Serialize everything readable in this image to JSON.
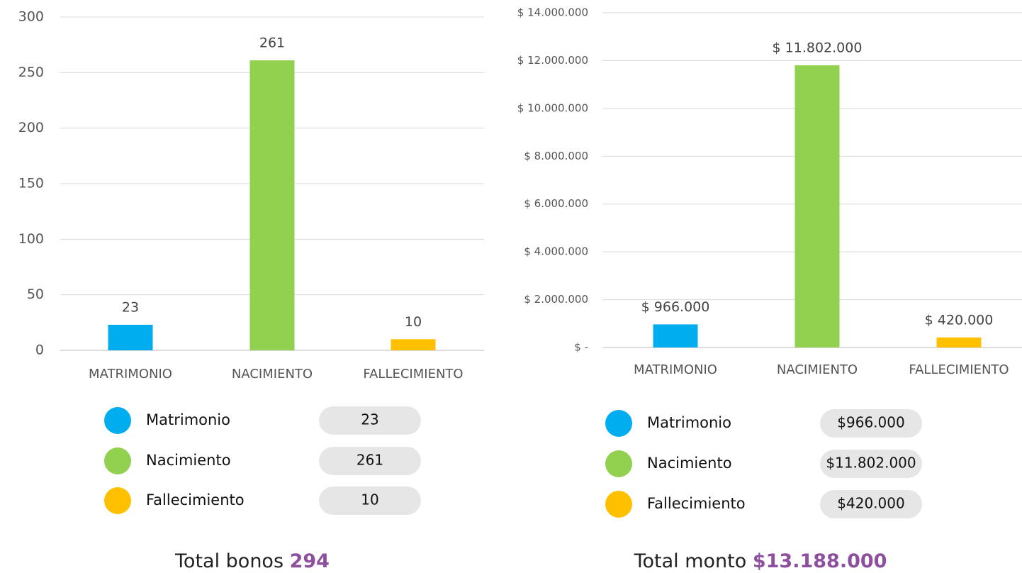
{
  "chart_data": [
    {
      "type": "bar",
      "categories": [
        "MATRIMONIO",
        "NACIMIENTO",
        "FALLECIMIENTO"
      ],
      "values": [
        23,
        261,
        10
      ],
      "colors": [
        "#00adef",
        "#92d050",
        "#ffc000"
      ],
      "ylim": [
        0,
        300
      ],
      "yticks": [
        0,
        50,
        100,
        150,
        200,
        250,
        300
      ],
      "grid": true
    },
    {
      "type": "bar",
      "categories": [
        "MATRIMONIO",
        "NACIMIENTO",
        "FALLECIMIENTO"
      ],
      "values": [
        966000,
        11802000,
        420000
      ],
      "value_labels": [
        "$ 966.000",
        "$ 11.802.000",
        "$ 420.000"
      ],
      "colors": [
        "#00adef",
        "#92d050",
        "#ffc000"
      ],
      "ylim": [
        0,
        14000000
      ],
      "yticks": [
        {
          "value": 0,
          "label": "$ -"
        },
        {
          "value": 2000000,
          "label": "$ 2.000.000"
        },
        {
          "value": 4000000,
          "label": "$ 4.000.000"
        },
        {
          "value": 6000000,
          "label": "$ 6.000.000"
        },
        {
          "value": 8000000,
          "label": "$ 8.000.000"
        },
        {
          "value": 10000000,
          "label": "$ 10.000.000"
        },
        {
          "value": 12000000,
          "label": "$ 12.000.000"
        },
        {
          "value": 14000000,
          "label": "$ 14.000.000"
        }
      ],
      "grid": true
    }
  ],
  "panels": [
    {
      "legend": [
        {
          "name": "Matrimonio",
          "value": "23"
        },
        {
          "name": "Nacimiento",
          "value": "261"
        },
        {
          "name": "Fallecimiento",
          "value": "10"
        }
      ],
      "total_label": "Total bonos",
      "total": "294"
    },
    {
      "legend": [
        {
          "name": "Matrimonio",
          "value": "$966.000"
        },
        {
          "name": "Nacimiento",
          "value": "$11.802.000"
        },
        {
          "name": "Fallecimiento",
          "value": "$420.000"
        }
      ],
      "total_label": "Total monto",
      "total": "$13.188.000"
    }
  ]
}
